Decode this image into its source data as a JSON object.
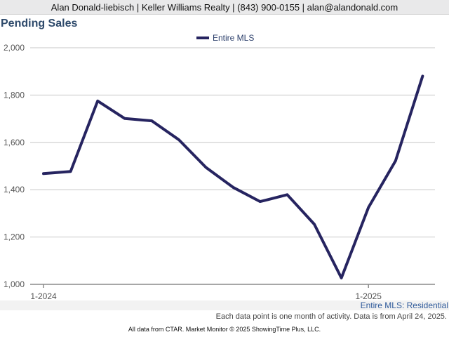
{
  "header": {
    "contact_line": "Alan Donald-liebisch | Keller Williams Realty | (843) 900-0155 | alan@alandonald.com"
  },
  "chart_data": {
    "type": "line",
    "title": "Pending Sales",
    "xlabel": "",
    "ylabel": "",
    "x": [
      "1-2024",
      "2-2024",
      "3-2024",
      "4-2024",
      "5-2024",
      "6-2024",
      "7-2024",
      "8-2024",
      "9-2024",
      "10-2024",
      "11-2024",
      "12-2024",
      "1-2025",
      "2-2025",
      "3-2025"
    ],
    "x_tick_labels": [
      "1-2024",
      "1-2025"
    ],
    "series": [
      {
        "name": "Entire MLS",
        "color": "#262460",
        "values": [
          1468,
          1477,
          1775,
          1701,
          1691,
          1611,
          1494,
          1410,
          1350,
          1379,
          1254,
          1027,
          1325,
          1522,
          1880
        ]
      }
    ],
    "ylim": [
      1000,
      2000
    ],
    "y_ticks": [
      1000,
      1200,
      1400,
      1600,
      1800,
      2000
    ],
    "y_tick_labels": [
      "1,000",
      "1,200",
      "1,400",
      "1,600",
      "1,800",
      "2,000"
    ],
    "grid": true,
    "legend_position": "top-center"
  },
  "footer": {
    "series_caption": "Entire MLS: Residential",
    "note": "Each data point is one month of activity. Data is from April 24, 2025.",
    "source": "All data from CTAR. Market Monitor © 2025 ShowingTime Plus, LLC."
  }
}
